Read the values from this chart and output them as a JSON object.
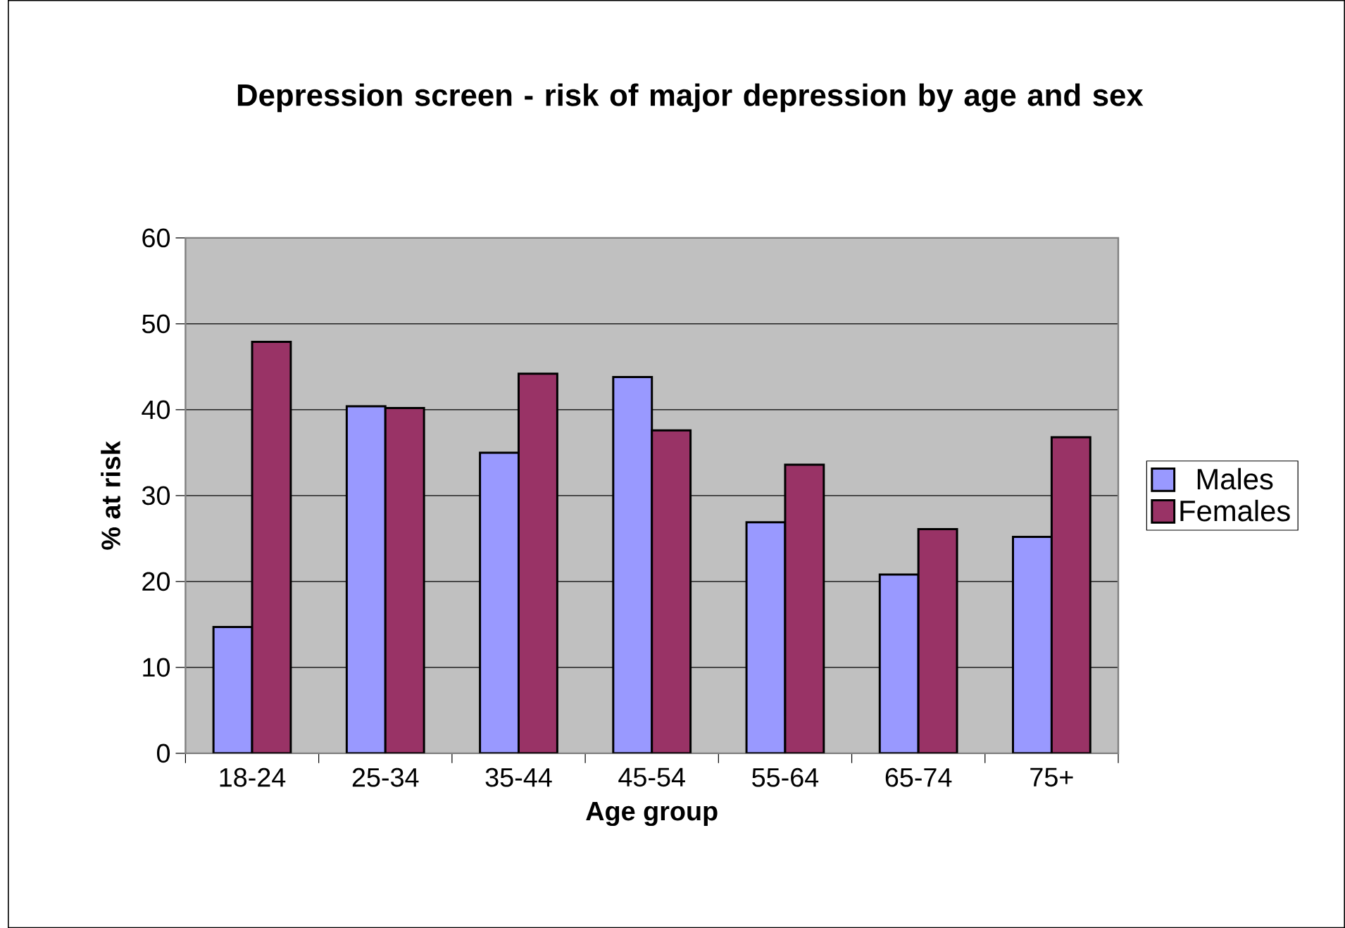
{
  "chart_data": {
    "type": "bar",
    "title": "Depression screen - risk of major depression by age and sex",
    "xlabel": "Age group",
    "ylabel": "% at risk",
    "categories": [
      "18-24",
      "25-34",
      "35-44",
      "45-54",
      "55-64",
      "65-74",
      "75+"
    ],
    "series": [
      {
        "name": "Males",
        "color": "#9999ff",
        "values": [
          14.7,
          40.4,
          35.0,
          43.8,
          26.9,
          20.8,
          25.2
        ]
      },
      {
        "name": "Females",
        "color": "#993366",
        "values": [
          47.9,
          40.2,
          44.2,
          37.6,
          33.6,
          26.1,
          36.8
        ]
      }
    ],
    "ylim": [
      0,
      60
    ],
    "yticks": [
      0,
      10,
      20,
      30,
      40,
      50,
      60
    ],
    "grid": "y",
    "legend": "right"
  }
}
